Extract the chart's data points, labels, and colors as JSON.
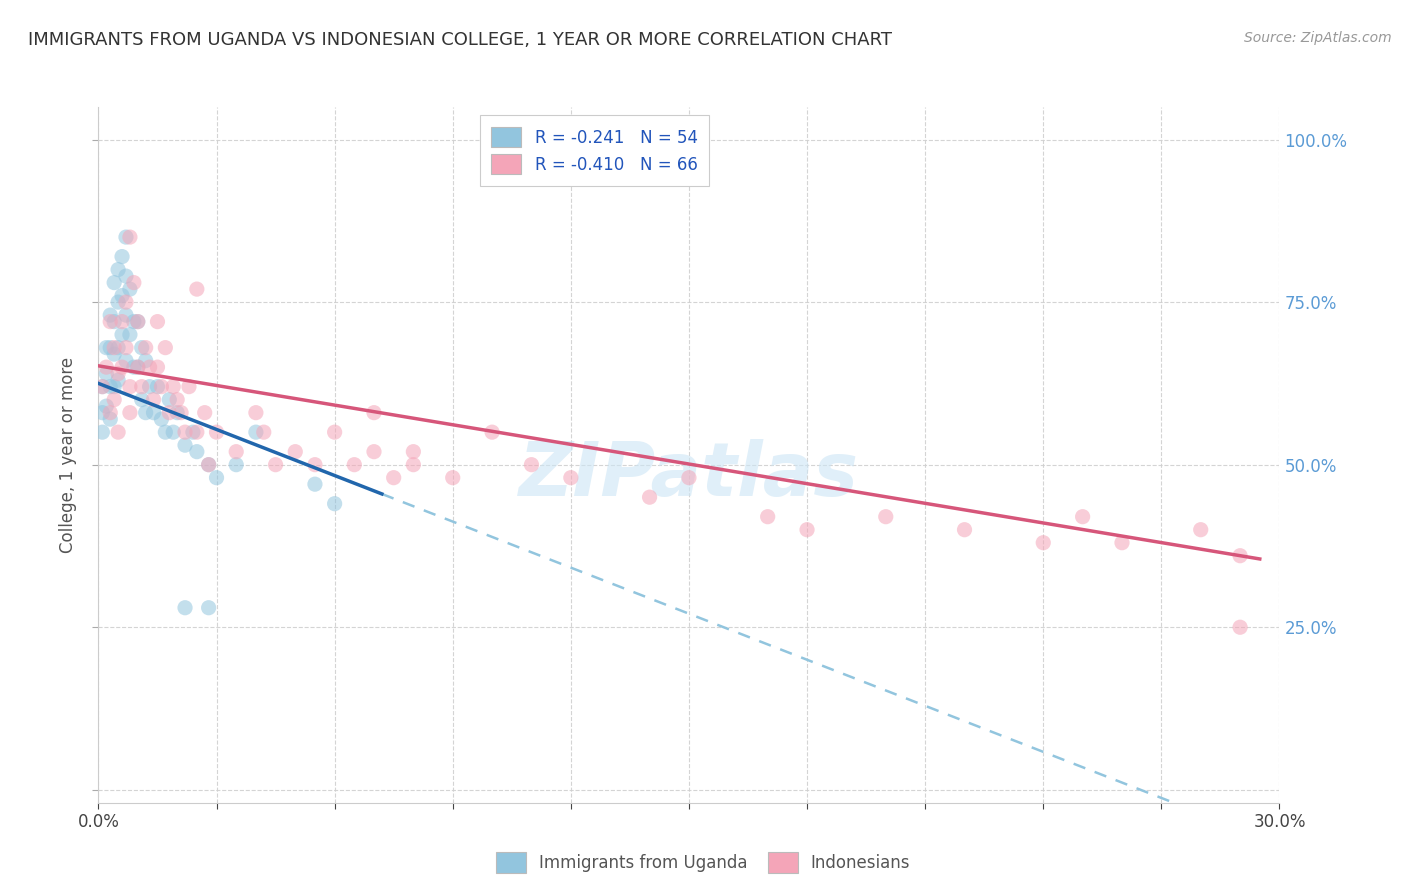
{
  "title": "IMMIGRANTS FROM UGANDA VS INDONESIAN COLLEGE, 1 YEAR OR MORE CORRELATION CHART",
  "source": "Source: ZipAtlas.com",
  "ylabel": "College, 1 year or more",
  "right_yticklabels": [
    "",
    "25.0%",
    "50.0%",
    "75.0%",
    "100.0%"
  ],
  "legend_label1": "R = -0.241   N = 54",
  "legend_label2": "R = -0.410   N = 66",
  "legend_label_bottom1": "Immigrants from Uganda",
  "legend_label_bottom2": "Indonesians",
  "color_blue": "#92c5de",
  "color_pink": "#f4a5b8",
  "color_blue_line": "#2166ac",
  "color_pink_line": "#d6567a",
  "color_dashed": "#92c5de",
  "watermark_text": "ZIPatlas",
  "xlim": [
    0.0,
    0.3
  ],
  "ylim": [
    -0.02,
    1.05
  ],
  "blue_line_x0": 0.0,
  "blue_line_y0": 0.625,
  "blue_line_x1": 0.072,
  "blue_line_y1": 0.455,
  "pink_line_x0": 0.0,
  "pink_line_y0": 0.652,
  "pink_line_x1": 0.295,
  "pink_line_y1": 0.355,
  "scatter_blue_x": [
    0.001,
    0.001,
    0.001,
    0.002,
    0.002,
    0.002,
    0.003,
    0.003,
    0.003,
    0.003,
    0.004,
    0.004,
    0.004,
    0.004,
    0.005,
    0.005,
    0.005,
    0.005,
    0.006,
    0.006,
    0.006,
    0.007,
    0.007,
    0.007,
    0.007,
    0.008,
    0.008,
    0.009,
    0.009,
    0.01,
    0.01,
    0.011,
    0.011,
    0.012,
    0.012,
    0.013,
    0.014,
    0.015,
    0.016,
    0.017,
    0.018,
    0.019,
    0.02,
    0.022,
    0.024,
    0.025,
    0.028,
    0.03,
    0.035,
    0.04,
    0.055,
    0.06,
    0.022,
    0.028
  ],
  "scatter_blue_y": [
    0.62,
    0.58,
    0.55,
    0.68,
    0.64,
    0.59,
    0.73,
    0.68,
    0.62,
    0.57,
    0.78,
    0.72,
    0.67,
    0.62,
    0.8,
    0.75,
    0.68,
    0.63,
    0.82,
    0.76,
    0.7,
    0.85,
    0.79,
    0.73,
    0.66,
    0.77,
    0.7,
    0.72,
    0.65,
    0.72,
    0.65,
    0.68,
    0.6,
    0.66,
    0.58,
    0.62,
    0.58,
    0.62,
    0.57,
    0.55,
    0.6,
    0.55,
    0.58,
    0.53,
    0.55,
    0.52,
    0.5,
    0.48,
    0.5,
    0.55,
    0.47,
    0.44,
    0.28,
    0.28
  ],
  "scatter_pink_x": [
    0.001,
    0.002,
    0.003,
    0.003,
    0.004,
    0.004,
    0.005,
    0.005,
    0.006,
    0.006,
    0.007,
    0.007,
    0.008,
    0.008,
    0.009,
    0.01,
    0.01,
    0.011,
    0.012,
    0.013,
    0.014,
    0.015,
    0.015,
    0.016,
    0.017,
    0.018,
    0.019,
    0.02,
    0.021,
    0.022,
    0.023,
    0.025,
    0.027,
    0.028,
    0.03,
    0.035,
    0.04,
    0.042,
    0.045,
    0.05,
    0.055,
    0.06,
    0.065,
    0.07,
    0.075,
    0.08,
    0.09,
    0.1,
    0.11,
    0.12,
    0.14,
    0.15,
    0.17,
    0.18,
    0.2,
    0.22,
    0.24,
    0.25,
    0.26,
    0.28,
    0.29,
    0.008,
    0.025,
    0.07,
    0.08,
    0.29
  ],
  "scatter_pink_y": [
    0.62,
    0.65,
    0.58,
    0.72,
    0.6,
    0.68,
    0.55,
    0.64,
    0.72,
    0.65,
    0.68,
    0.75,
    0.62,
    0.58,
    0.78,
    0.72,
    0.65,
    0.62,
    0.68,
    0.65,
    0.6,
    0.72,
    0.65,
    0.62,
    0.68,
    0.58,
    0.62,
    0.6,
    0.58,
    0.55,
    0.62,
    0.55,
    0.58,
    0.5,
    0.55,
    0.52,
    0.58,
    0.55,
    0.5,
    0.52,
    0.5,
    0.55,
    0.5,
    0.52,
    0.48,
    0.52,
    0.48,
    0.55,
    0.5,
    0.48,
    0.45,
    0.48,
    0.42,
    0.4,
    0.42,
    0.4,
    0.38,
    0.42,
    0.38,
    0.4,
    0.36,
    0.85,
    0.77,
    0.58,
    0.5,
    0.25
  ],
  "grid_color": "#d0d0d0",
  "bg_color": "#ffffff"
}
